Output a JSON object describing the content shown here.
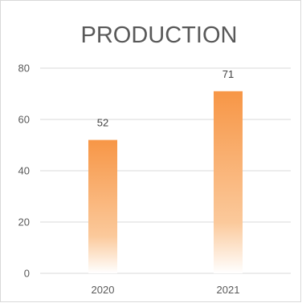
{
  "chart_data": {
    "type": "bar",
    "title": "PRODUCTION",
    "categories": [
      "2020",
      "2021"
    ],
    "values": [
      52,
      71
    ],
    "ylim": [
      0,
      80
    ],
    "yticks": [
      0,
      20,
      40,
      60,
      80
    ],
    "xlabel": "",
    "ylabel": "",
    "grid": true,
    "legend": "none",
    "bar_color_top": "#f79646",
    "bar_color_bottom": "#ffffff",
    "gridline_color": "#d9d9d9",
    "text_color": "#595959"
  }
}
